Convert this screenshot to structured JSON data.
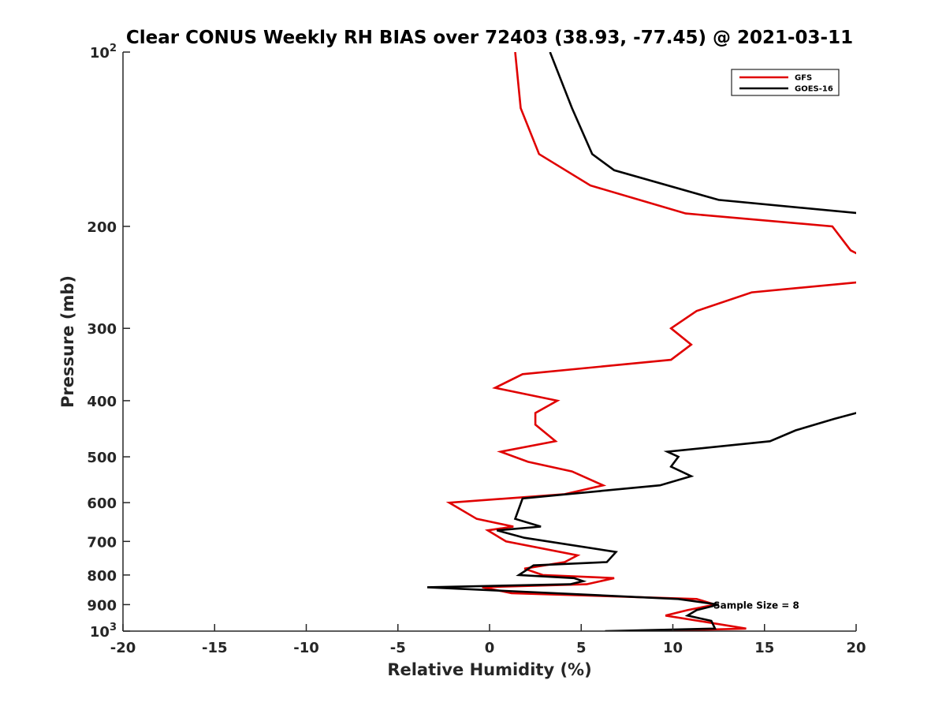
{
  "chart_data": {
    "type": "line",
    "title": "Clear CONUS Weekly RH BIAS over 72403 (38.93, -77.45) @ 2021-03-11",
    "xlabel": "Relative Humidity (%)",
    "ylabel": "Pressure (mb)",
    "xlim": [
      -20,
      20
    ],
    "ylim": [
      100,
      1000
    ],
    "y_scale": "log",
    "y_reversed": true,
    "grid": false,
    "legend_position": "top-right",
    "x_ticks": [
      {
        "value": -20,
        "label": "-20"
      },
      {
        "value": -15,
        "label": "-15"
      },
      {
        "value": -10,
        "label": "-10"
      },
      {
        "value": -5,
        "label": "-5"
      },
      {
        "value": 0,
        "label": "0"
      },
      {
        "value": 5,
        "label": "5"
      },
      {
        "value": 10,
        "label": "10"
      },
      {
        "value": 15,
        "label": "15"
      },
      {
        "value": 20,
        "label": "20"
      }
    ],
    "y_ticks": [
      {
        "value": 100,
        "base": "10",
        "exp": "2"
      },
      {
        "value": 200,
        "base": "200",
        "exp": ""
      },
      {
        "value": 300,
        "base": "300",
        "exp": ""
      },
      {
        "value": 400,
        "base": "400",
        "exp": ""
      },
      {
        "value": 500,
        "base": "500",
        "exp": ""
      },
      {
        "value": 600,
        "base": "600",
        "exp": ""
      },
      {
        "value": 700,
        "base": "700",
        "exp": ""
      },
      {
        "value": 800,
        "base": "800",
        "exp": ""
      },
      {
        "value": 900,
        "base": "900",
        "exp": ""
      },
      {
        "value": 1000,
        "base": "10",
        "exp": "3"
      }
    ],
    "series": [
      {
        "name": "GFS",
        "color": "#e00000",
        "points": [
          {
            "x": 1.4,
            "y": 100
          },
          {
            "x": 1.7,
            "y": 125
          },
          {
            "x": 2.7,
            "y": 150
          },
          {
            "x": 5.5,
            "y": 170
          },
          {
            "x": 10.7,
            "y": 190
          },
          {
            "x": 18.7,
            "y": 200
          },
          {
            "x": 19.7,
            "y": 220
          },
          {
            "x": 20.3,
            "y": 225
          },
          {
            "x": 20.3,
            "y": 250
          },
          {
            "x": 20.0,
            "y": 250
          },
          {
            "x": 14.3,
            "y": 260
          },
          {
            "x": 11.3,
            "y": 280
          },
          {
            "x": 9.9,
            "y": 300
          },
          {
            "x": 11.0,
            "y": 320
          },
          {
            "x": 9.9,
            "y": 340
          },
          {
            "x": 1.8,
            "y": 360
          },
          {
            "x": 0.3,
            "y": 380
          },
          {
            "x": 3.7,
            "y": 400
          },
          {
            "x": 2.5,
            "y": 420
          },
          {
            "x": 2.5,
            "y": 440
          },
          {
            "x": 3.6,
            "y": 470
          },
          {
            "x": 0.6,
            "y": 490
          },
          {
            "x": 2.1,
            "y": 510
          },
          {
            "x": 4.5,
            "y": 530
          },
          {
            "x": 6.2,
            "y": 560
          },
          {
            "x": 4.1,
            "y": 580
          },
          {
            "x": -2.2,
            "y": 600
          },
          {
            "x": -0.7,
            "y": 640
          },
          {
            "x": 1.3,
            "y": 660
          },
          {
            "x": -0.1,
            "y": 670
          },
          {
            "x": 0.9,
            "y": 700
          },
          {
            "x": 4.8,
            "y": 740
          },
          {
            "x": 4.1,
            "y": 760
          },
          {
            "x": 1.9,
            "y": 780
          },
          {
            "x": 2.9,
            "y": 800
          },
          {
            "x": 6.8,
            "y": 810
          },
          {
            "x": 5.3,
            "y": 830
          },
          {
            "x": -0.4,
            "y": 840
          },
          {
            "x": 1.2,
            "y": 860
          },
          {
            "x": 11.3,
            "y": 880
          },
          {
            "x": 12.3,
            "y": 900
          },
          {
            "x": 10.8,
            "y": 920
          },
          {
            "x": 9.6,
            "y": 940
          },
          {
            "x": 11.4,
            "y": 960
          },
          {
            "x": 14.0,
            "y": 990
          },
          {
            "x": 8.9,
            "y": 1000
          }
        ]
      },
      {
        "name": "GOES-16",
        "color": "#000000",
        "points": [
          {
            "x": 3.3,
            "y": 100
          },
          {
            "x": 4.5,
            "y": 125
          },
          {
            "x": 5.6,
            "y": 150
          },
          {
            "x": 6.8,
            "y": 160
          },
          {
            "x": 12.5,
            "y": 180
          },
          {
            "x": 20.3,
            "y": 190
          },
          {
            "x": 20.3,
            "y": 420
          },
          {
            "x": 20.0,
            "y": 420
          },
          {
            "x": 18.8,
            "y": 430
          },
          {
            "x": 16.7,
            "y": 450
          },
          {
            "x": 15.3,
            "y": 470
          },
          {
            "x": 9.7,
            "y": 490
          },
          {
            "x": 10.3,
            "y": 500
          },
          {
            "x": 9.9,
            "y": 520
          },
          {
            "x": 11.0,
            "y": 540
          },
          {
            "x": 9.3,
            "y": 560
          },
          {
            "x": 1.8,
            "y": 590
          },
          {
            "x": 1.4,
            "y": 640
          },
          {
            "x": 2.8,
            "y": 660
          },
          {
            "x": 0.4,
            "y": 670
          },
          {
            "x": 1.9,
            "y": 690
          },
          {
            "x": 6.9,
            "y": 730
          },
          {
            "x": 6.4,
            "y": 760
          },
          {
            "x": 2.4,
            "y": 770
          },
          {
            "x": 1.6,
            "y": 800
          },
          {
            "x": 4.6,
            "y": 810
          },
          {
            "x": 5.1,
            "y": 820
          },
          {
            "x": 4.4,
            "y": 830
          },
          {
            "x": -3.4,
            "y": 840
          },
          {
            "x": 10.3,
            "y": 880
          },
          {
            "x": 12.5,
            "y": 900
          },
          {
            "x": 11.3,
            "y": 920
          },
          {
            "x": 10.8,
            "y": 940
          },
          {
            "x": 12.1,
            "y": 960
          },
          {
            "x": 12.3,
            "y": 990
          },
          {
            "x": 6.3,
            "y": 1000
          }
        ]
      }
    ],
    "annotations": [
      {
        "text": "Sample Size = 8",
        "x": 12.3,
        "y": 900
      }
    ]
  }
}
